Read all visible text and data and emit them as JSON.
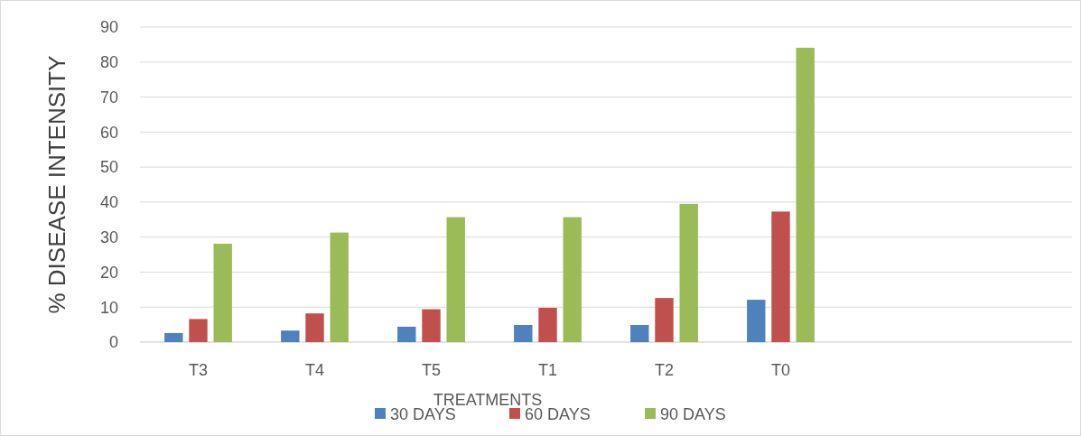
{
  "chart_data": {
    "type": "bar",
    "ylabel": "% DISEASE INTENSITY",
    "xlabel": "TREATMENTS",
    "categories": [
      "T3",
      "T4",
      "T5",
      "T1",
      "T2",
      "T0",
      null,
      null
    ],
    "series": [
      {
        "name": "30 DAYS",
        "color": "#4f81bd",
        "values": [
          2.6,
          3.3,
          4.4,
          4.9,
          4.9,
          12.1,
          null,
          null
        ]
      },
      {
        "name": "60 DAYS",
        "color": "#c0504d",
        "values": [
          6.6,
          8.2,
          9.4,
          9.8,
          12.6,
          37.3,
          null,
          null
        ]
      },
      {
        "name": "90 DAYS",
        "color": "#9bbb59",
        "values": [
          28.1,
          31.3,
          35.7,
          35.7,
          39.5,
          84.1,
          null,
          null
        ]
      }
    ],
    "ylim": [
      0,
      90
    ],
    "yticks": [
      0,
      10,
      20,
      30,
      40,
      50,
      60,
      70,
      80,
      90
    ],
    "grid": "y",
    "legend": "bottom"
  }
}
